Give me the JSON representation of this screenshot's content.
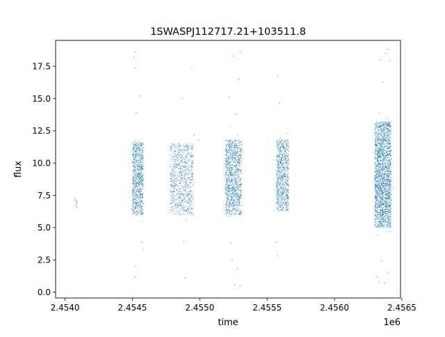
{
  "chart_data": {
    "type": "scatter",
    "title": "1SWASPJ112717.21+103511.8",
    "xlabel": "time",
    "ylabel": "flux",
    "x_offset_label": "1e6",
    "xlim": [
      2.45393,
      2.45649
    ],
    "ylim": [
      -0.45,
      19.5
    ],
    "x_ticks": [
      2.454,
      2.4545,
      2.455,
      2.4555,
      2.456,
      2.4565
    ],
    "x_tick_labels": [
      "2.4540",
      "2.4545",
      "2.4550",
      "2.4555",
      "2.4560",
      "2.4565"
    ],
    "y_ticks": [
      0.0,
      2.5,
      5.0,
      7.5,
      10.0,
      12.5,
      15.0,
      17.5
    ],
    "y_tick_labels": [
      "0.0",
      "2.5",
      "5.0",
      "7.5",
      "10.0",
      "12.5",
      "15.0",
      "17.5"
    ],
    "grid": false,
    "marker_color": "#1f77b4",
    "observing_seasons": [
      {
        "x_start": 2.45407,
        "x_end": 2.45409,
        "flux_low": 6.5,
        "flux_high": 7.3,
        "n_points": 10
      },
      {
        "x_start": 2.4545,
        "x_end": 2.45458,
        "flux_low": 6.0,
        "flux_high": 11.6,
        "n_points": 700
      },
      {
        "x_start": 2.45478,
        "x_end": 2.45495,
        "flux_low": 6.0,
        "flux_high": 11.5,
        "n_points": 650
      },
      {
        "x_start": 2.45519,
        "x_end": 2.45531,
        "flux_low": 6.0,
        "flux_high": 11.8,
        "n_points": 900
      },
      {
        "x_start": 2.45557,
        "x_end": 2.45566,
        "flux_low": 6.3,
        "flux_high": 11.8,
        "n_points": 650
      },
      {
        "x_start": 2.4563,
        "x_end": 2.45642,
        "flux_low": 5.0,
        "flux_high": 13.2,
        "n_points": 1800
      }
    ],
    "outliers": [
      [
        2.45452,
        18.6
      ],
      [
        2.45451,
        18.2
      ],
      [
        2.45452,
        17.4
      ],
      [
        2.45455,
        15.2
      ],
      [
        2.45453,
        13.9
      ],
      [
        2.45452,
        2.0
      ],
      [
        2.45452,
        1.2
      ],
      [
        2.45457,
        3.9
      ],
      [
        2.45458,
        3.3
      ],
      [
        2.45487,
        15.0
      ],
      [
        2.45494,
        17.3
      ],
      [
        2.45488,
        4.0
      ],
      [
        2.45489,
        1.1
      ],
      [
        2.45496,
        12.2
      ],
      [
        2.45499,
        11.8
      ],
      [
        2.45525,
        18.3
      ],
      [
        2.4553,
        18.6
      ],
      [
        2.45529,
        16.5
      ],
      [
        2.45522,
        15.1
      ],
      [
        2.45527,
        13.8
      ],
      [
        2.45524,
        2.5
      ],
      [
        2.45526,
        0.6
      ],
      [
        2.4553,
        0.5
      ],
      [
        2.45523,
        3.8
      ],
      [
        2.45528,
        1.8
      ],
      [
        2.45558,
        16.7
      ],
      [
        2.45559,
        14.6
      ],
      [
        2.45557,
        3.9
      ],
      [
        2.45558,
        2.8
      ],
      [
        2.45634,
        18.0
      ],
      [
        2.45638,
        18.5
      ],
      [
        2.4564,
        18.8
      ],
      [
        2.45641,
        17.9
      ],
      [
        2.45636,
        16.3
      ],
      [
        2.45632,
        1.2
      ],
      [
        2.45633,
        0.8
      ],
      [
        2.45637,
        0.7
      ],
      [
        2.4564,
        1.5
      ],
      [
        2.45635,
        2.4
      ]
    ]
  }
}
